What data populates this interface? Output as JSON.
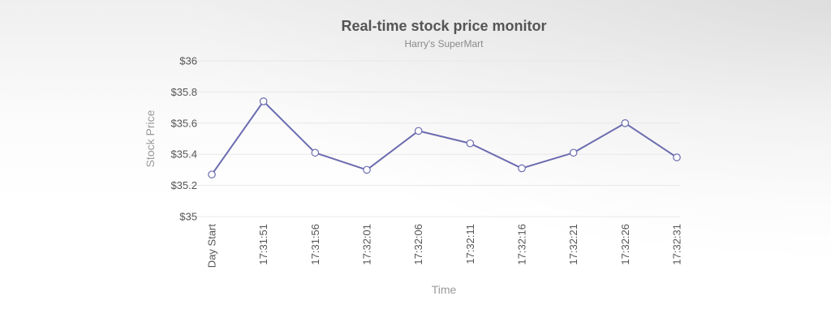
{
  "chart_data": {
    "type": "line",
    "title": "Real-time stock price monitor",
    "subtitle": "Harry's SuperMart",
    "xlabel": "Time",
    "ylabel": "Stock Price",
    "categories": [
      "Day Start",
      "17:31:51",
      "17:31:56",
      "17:32:01",
      "17:32:06",
      "17:32:11",
      "17:32:16",
      "17:32:21",
      "17:32:26",
      "17:32:31"
    ],
    "series": [
      {
        "values": [
          35.27,
          35.74,
          35.41,
          35.3,
          35.55,
          35.47,
          35.31,
          35.41,
          35.6,
          35.38
        ],
        "color": "#6b6bb0"
      }
    ],
    "ylim": [
      35,
      36
    ],
    "yticks": [
      {
        "value": 35,
        "label": "$35"
      },
      {
        "value": 35.2,
        "label": "$35.2"
      },
      {
        "value": 35.4,
        "label": "$35.4"
      },
      {
        "value": 35.6,
        "label": "$35.6"
      },
      {
        "value": 35.8,
        "label": "$35.8"
      },
      {
        "value": 36,
        "label": "$36"
      }
    ],
    "grid": true,
    "legend": "none"
  }
}
